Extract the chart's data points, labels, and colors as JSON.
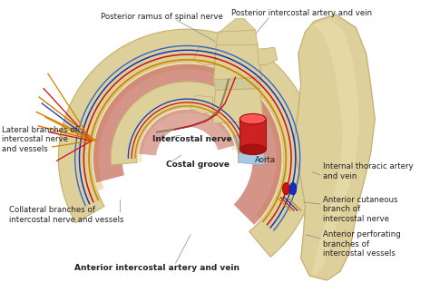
{
  "bg_color": "#ffffff",
  "labels": {
    "posterior_ramus": "Posterior ramus of spinal nerve",
    "posterior_intercostal": "Posterior intercostal artery and vein",
    "lateral_branches": "Lateral branches of\nintercostal nerve\nand vessels",
    "intercostal_nerve": "Intercostal nerve",
    "aorta": "Aorta",
    "costal_groove": "Costal groove",
    "collateral_branches": "Collateral branches of\nintercostal nerve and vessels",
    "anterior_intercostal": "Anterior intercostal artery and vein",
    "internal_thoracic": "Internal thoracic artery\nand vein",
    "anterior_cutaneous": "Anterior cutaneous\nbranch of\nintercostal nerve",
    "anterior_perforating": "Anterior perforating\nbranches of\nintercostal vessels"
  },
  "colors": {
    "bone": "#ddd09a",
    "bone_shadow": "#c4b070",
    "bone_light": "#eee0b5",
    "muscle_red": "#c87060",
    "muscle_light": "#dda090",
    "nerve_yellow": "#cc8800",
    "nerve_orange": "#dd7700",
    "artery_red": "#cc1111",
    "vein_blue": "#1133bb",
    "nerve_cord_blue": "#3366cc",
    "aorta_red": "#cc2222",
    "cartilage_blue": "#aac8e0",
    "cartilage_mid": "#88aacc",
    "background": "#ffffff",
    "text_dark": "#222222",
    "line_gray": "#888888"
  }
}
